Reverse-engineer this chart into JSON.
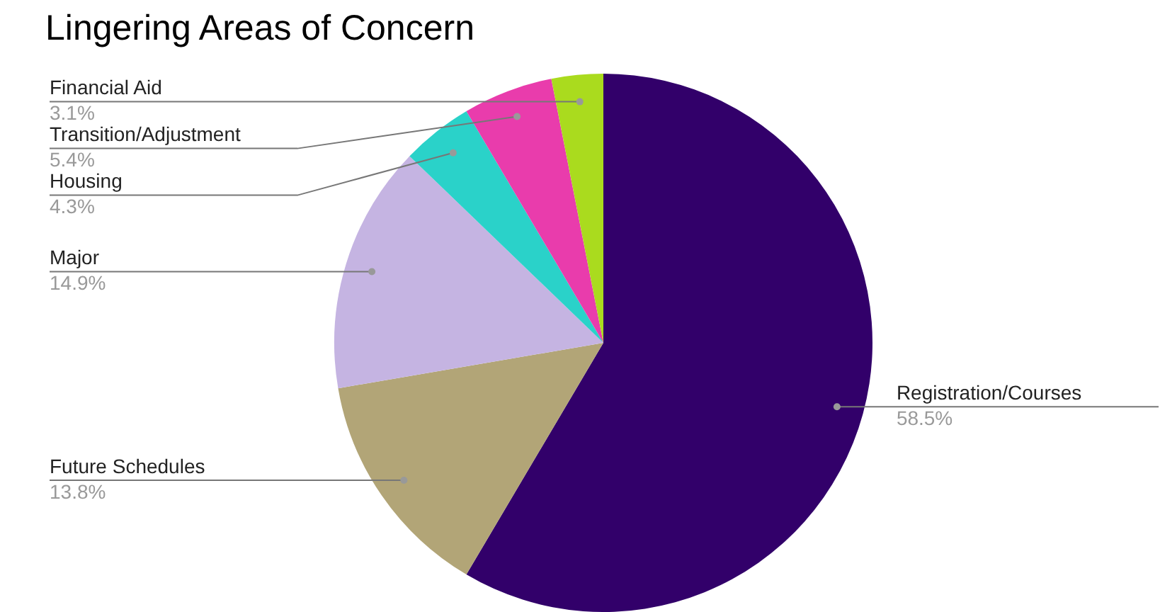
{
  "chart_data": {
    "type": "pie",
    "title": "Lingering Areas of Concern",
    "categories": [
      "Registration/Courses",
      "Future Schedules",
      "Major",
      "Housing",
      "Transition/Adjustment",
      "Financial Aid"
    ],
    "values": [
      58.5,
      13.8,
      14.9,
      4.3,
      5.4,
      3.1
    ],
    "value_labels": [
      "58.5%",
      "13.8%",
      "14.9%",
      "4.3%",
      "5.4%",
      "3.1%"
    ],
    "colors": [
      "#32006a",
      "#b2a577",
      "#c5b4e2",
      "#2ad2c9",
      "#e93cac",
      "#aadb1e"
    ],
    "legend": false
  }
}
